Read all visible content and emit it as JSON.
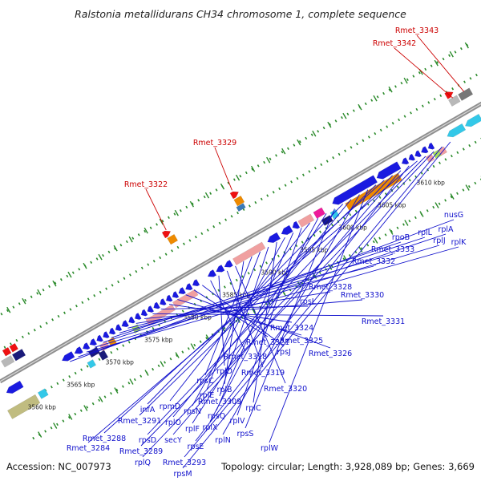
{
  "title": "Ralstonia metallidurans CH34 chromosome 1, complete sequence",
  "footer": {
    "accession": "Accession: NC_007973",
    "summary": "Topology: circular; Length: 3,928,089 bp; Genes: 3,669"
  },
  "colors": {
    "track": "#8f8f8f",
    "dots": "#2a8a2a",
    "blue_gene": "#1a1ae0",
    "navy_gene": "#1a1a7a",
    "cyan_gene": "#33c8e8",
    "orange_gene": "#ee8a00",
    "pink_gene": "#f0a0a0",
    "magenta_gene": "#ee1a9a",
    "red_gene": "#ee1111",
    "lime_gene": "#a8e05a",
    "olive_gene": "#c0bc80",
    "gray_gene": "#b8b8b8",
    "red_label": "#cc0000",
    "blue_label": "#1010cc"
  },
  "ticks": [
    "3560 kbp",
    "3565 kbp",
    "3570 kbp",
    "3575 kbp",
    "3580 kbp",
    "3585 kbp",
    "3590 kbp",
    "3595 kbp",
    "3600 kbp",
    "3605 kbp",
    "3610 kbp"
  ],
  "upper_labels": [
    "Rmet_3343",
    "Rmet_3342",
    "Rmet_3329",
    "Rmet_3322"
  ],
  "lower_labels": [
    "nusG",
    "rplA",
    "rplK",
    "rplJ",
    "rplL",
    "rpoB",
    "Rmet_3333",
    "Rmet_3332",
    "Rmet_3328",
    "Rmet_3330",
    "Rmet_3331",
    "rpsL",
    "Rmet_3324",
    "Rmet_3325",
    "Rmet_3326",
    "Rmet_3321",
    "rpsJ",
    "Rmet_3318",
    "rplD",
    "Rmet_3319",
    "Rmet_3320",
    "rplB",
    "rpsC",
    "rplE",
    "Rmet_3309",
    "rplC",
    "rpsN",
    "rpsQ",
    "rplV",
    "rpmD",
    "rplX",
    "rplF",
    "rpsS",
    "infA",
    "rplO",
    "rplN",
    "rplW",
    "Rmet_3291",
    "Rmet_3288",
    "rpsD",
    "secY",
    "rpsE",
    "Rmet_3284",
    "Rmet_3289",
    "rplQ",
    "Rmet_3293",
    "rpsM"
  ]
}
